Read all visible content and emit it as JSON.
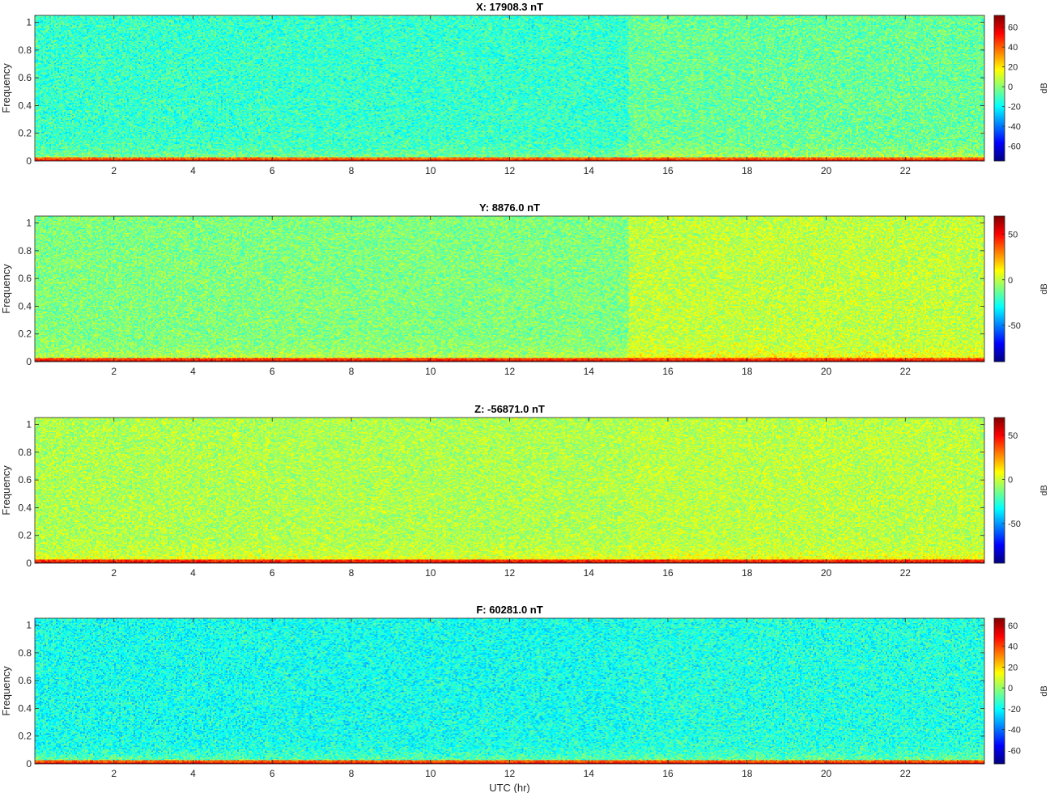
{
  "figure": {
    "xlabel": "UTC (hr)",
    "ylabel": "Frequency",
    "colorbar_label": "dB",
    "colormap": "jet"
  },
  "chart_data": [
    {
      "type": "heatmap",
      "title": "X: 17908.3 nT",
      "xlabel": "",
      "ylabel": "Frequency",
      "xlim": [
        0,
        24
      ],
      "ylim": [
        0,
        1.05
      ],
      "xticks": [
        2,
        4,
        6,
        8,
        10,
        12,
        14,
        16,
        18,
        20,
        22
      ],
      "yticks": [
        0,
        0.2,
        0.4,
        0.6,
        0.8,
        1
      ],
      "colorbar": {
        "label": "dB",
        "range": [
          -75,
          72
        ],
        "ticks": [
          -60,
          -40,
          -20,
          0,
          20,
          40,
          60
        ]
      },
      "description_values": {
        "noise_floor_db": -12,
        "low_freq_band_db": 55,
        "late_day_noise_db": -5
      }
    },
    {
      "type": "heatmap",
      "title": "Y: 8876.0 nT",
      "xlabel": "",
      "ylabel": "Frequency",
      "xlim": [
        0,
        24
      ],
      "ylim": [
        0,
        1.05
      ],
      "xticks": [
        2,
        4,
        6,
        8,
        10,
        12,
        14,
        16,
        18,
        20,
        22
      ],
      "yticks": [
        0,
        0.2,
        0.4,
        0.6,
        0.8,
        1
      ],
      "colorbar": {
        "label": "dB",
        "range": [
          -90,
          70
        ],
        "ticks": [
          -50,
          0,
          50
        ]
      },
      "description_values": {
        "noise_floor_db": -10,
        "low_freq_band_db": 60,
        "late_day_noise_db": 0
      }
    },
    {
      "type": "heatmap",
      "title": "Z: -56871.0 nT",
      "xlabel": "",
      "ylabel": "Frequency",
      "xlim": [
        0,
        24
      ],
      "ylim": [
        0,
        1.05
      ],
      "xticks": [
        2,
        4,
        6,
        8,
        10,
        12,
        14,
        16,
        18,
        20,
        22
      ],
      "yticks": [
        0,
        0.2,
        0.4,
        0.6,
        0.8,
        1
      ],
      "colorbar": {
        "label": "dB",
        "range": [
          -95,
          70
        ],
        "ticks": [
          -50,
          0,
          50
        ]
      },
      "description_values": {
        "noise_floor_db": -5,
        "low_freq_band_db": 60,
        "late_day_noise_db": -3
      }
    },
    {
      "type": "heatmap",
      "title": "F: 60281.0 nT",
      "xlabel": "UTC (hr)",
      "ylabel": "Frequency",
      "xlim": [
        0,
        24
      ],
      "ylim": [
        0,
        1.05
      ],
      "xticks": [
        2,
        4,
        6,
        8,
        10,
        12,
        14,
        16,
        18,
        20,
        22
      ],
      "yticks": [
        0,
        0.2,
        0.4,
        0.6,
        0.8,
        1
      ],
      "colorbar": {
        "label": "dB",
        "range": [
          -73,
          67
        ],
        "ticks": [
          -60,
          -40,
          -20,
          0,
          20,
          40,
          60
        ]
      },
      "description_values": {
        "noise_floor_db": -18,
        "low_freq_band_db": 52,
        "late_day_noise_db": -16
      }
    }
  ]
}
